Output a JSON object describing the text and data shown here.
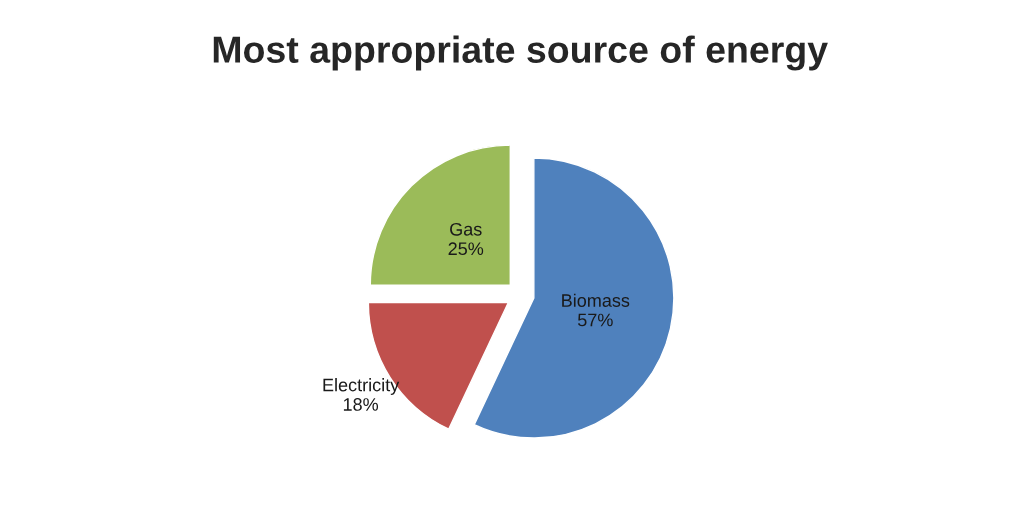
{
  "chart_data": {
    "type": "pie",
    "title": "Most appropriate source of energy",
    "categories": [
      "Biomass",
      "Electricity",
      "Gas"
    ],
    "values": [
      57,
      18,
      25
    ],
    "value_labels": [
      "57%",
      "18%",
      "25%"
    ],
    "colors": [
      "#4f81bd",
      "#c0504d",
      "#9bbb59"
    ],
    "legend": false
  }
}
